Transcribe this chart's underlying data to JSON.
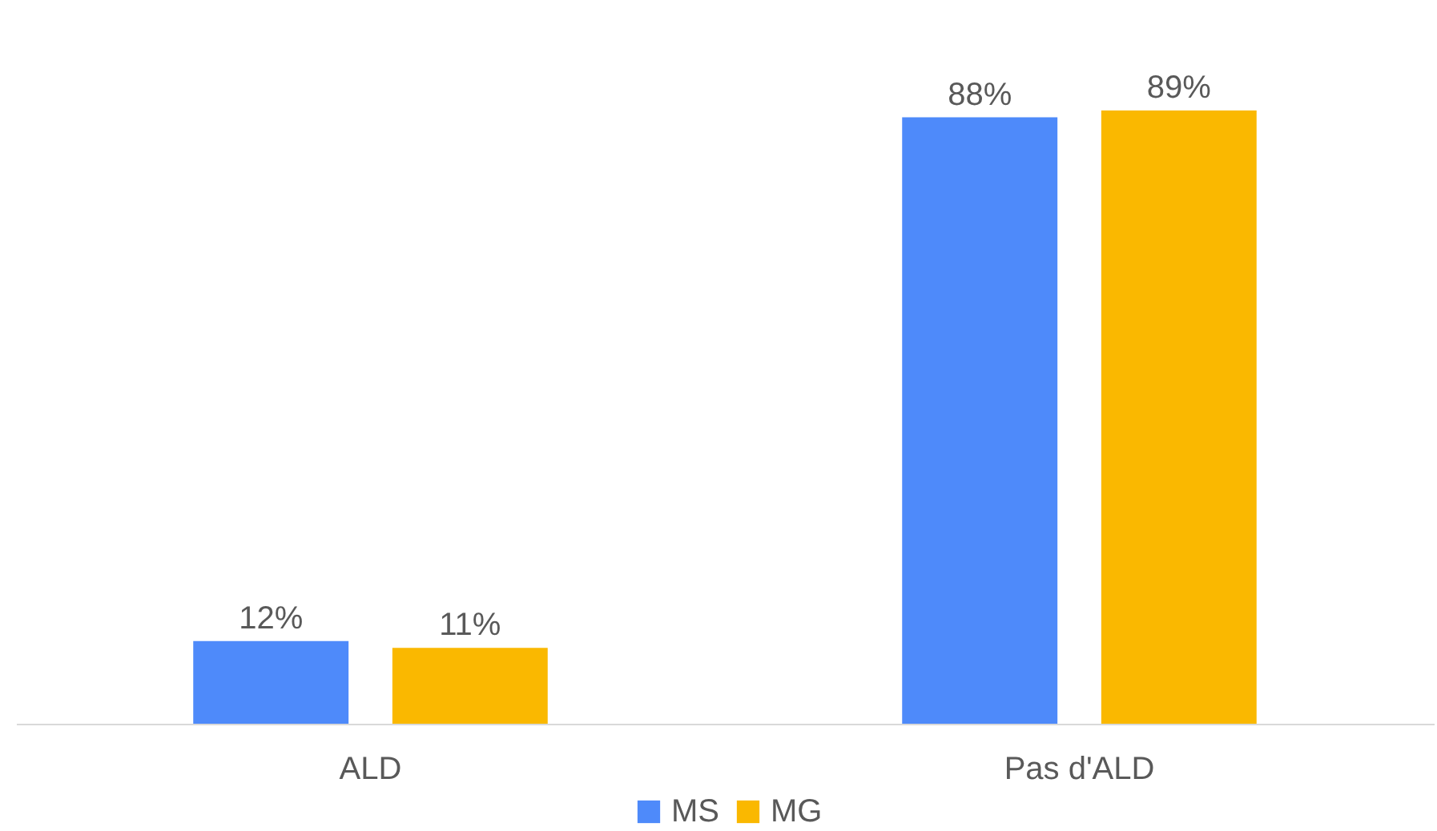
{
  "chart_data": {
    "type": "bar",
    "categories": [
      "ALD",
      "Pas d'ALD"
    ],
    "series": [
      {
        "name": "MS",
        "color": "#4e8afa",
        "values": [
          12,
          88
        ],
        "value_labels": [
          "12%",
          "88%"
        ]
      },
      {
        "name": "MG",
        "color": "#fab800",
        "values": [
          11,
          89
        ],
        "value_labels": [
          "11%",
          "89%"
        ]
      }
    ],
    "legend": "bottom"
  }
}
